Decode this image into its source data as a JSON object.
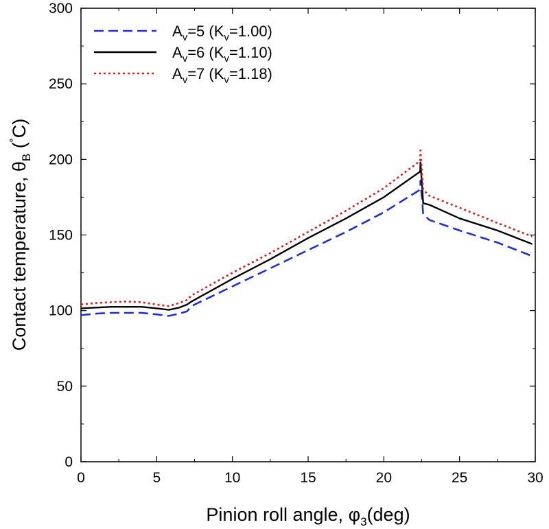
{
  "chart_data": {
    "type": "line",
    "xlabel": {
      "main": "Pinion roll angle, ",
      "symbol": "φ",
      "sub": "3",
      "unit": "(deg)"
    },
    "ylabel": {
      "main": "Contact temperature, ",
      "symbol": "θ",
      "sub": "B",
      "unit_open": " (",
      "degree": "˚",
      "unit_letter": "C",
      "unit_close": ")"
    },
    "xlim": [
      0,
      30
    ],
    "ylim": [
      0,
      300
    ],
    "xticks": [
      0,
      5,
      10,
      15,
      20,
      25,
      30
    ],
    "yticks": [
      0,
      50,
      100,
      150,
      200,
      250,
      300
    ],
    "grid": false,
    "legend_position": "top-left",
    "series": [
      {
        "name": "Av=5 (Kv=1.00)",
        "legend": {
          "a": "A",
          "a_sub": "v",
          "mid": "=5 (K",
          "k_sub": "v",
          "end": "=1.00)"
        },
        "color": "#1f2fd6",
        "style": "dashed",
        "x": [
          0,
          1,
          2,
          3,
          4,
          5,
          5.8,
          6.5,
          7.0,
          7.3,
          10,
          12.5,
          15,
          17.5,
          20,
          22.4,
          22.42,
          22.6,
          23,
          25,
          27.5,
          29.8
        ],
        "y": [
          97,
          98,
          98.5,
          98.5,
          98.5,
          97.5,
          96.5,
          98,
          99.5,
          103,
          116,
          128,
          140,
          152,
          165,
          180,
          186,
          164,
          160,
          153,
          145,
          136
        ]
      },
      {
        "name": "Av=6 (Kv=1.10)",
        "legend": {
          "a": "A",
          "a_sub": "v",
          "mid": "=6 (K",
          "k_sub": "v",
          "end": "=1.10)"
        },
        "color": "#000000",
        "style": "solid",
        "x": [
          0,
          1,
          2,
          3,
          4,
          5,
          5.8,
          6.5,
          7.0,
          7.3,
          10,
          12.5,
          15,
          17.5,
          20,
          22.4,
          22.42,
          22.6,
          23,
          25,
          27.5,
          29.8
        ],
        "y": [
          101.5,
          102,
          102.5,
          102.5,
          102.5,
          101.5,
          100.5,
          102,
          104,
          106,
          121,
          134,
          148,
          161,
          175,
          192,
          198,
          171,
          170,
          161,
          153,
          144
        ]
      },
      {
        "name": "Av=7 (Kv=1.18)",
        "legend": {
          "a": "A",
          "a_sub": "v",
          "mid": "=7 (K",
          "k_sub": "v",
          "end": "=1.18)"
        },
        "color": "#e41a1a",
        "style": "dotted",
        "x": [
          0,
          1,
          2,
          3,
          4,
          5,
          5.8,
          6.5,
          7.0,
          7.3,
          10,
          12.5,
          15,
          17.5,
          20,
          22.4,
          22.42,
          22.6,
          23,
          25,
          27.5,
          29.8
        ],
        "y": [
          104,
          105,
          105.5,
          106,
          105.5,
          104,
          103,
          105,
          107,
          110,
          125,
          138,
          152,
          166,
          181,
          199,
          206,
          180,
          176,
          168,
          158,
          149
        ]
      }
    ]
  }
}
